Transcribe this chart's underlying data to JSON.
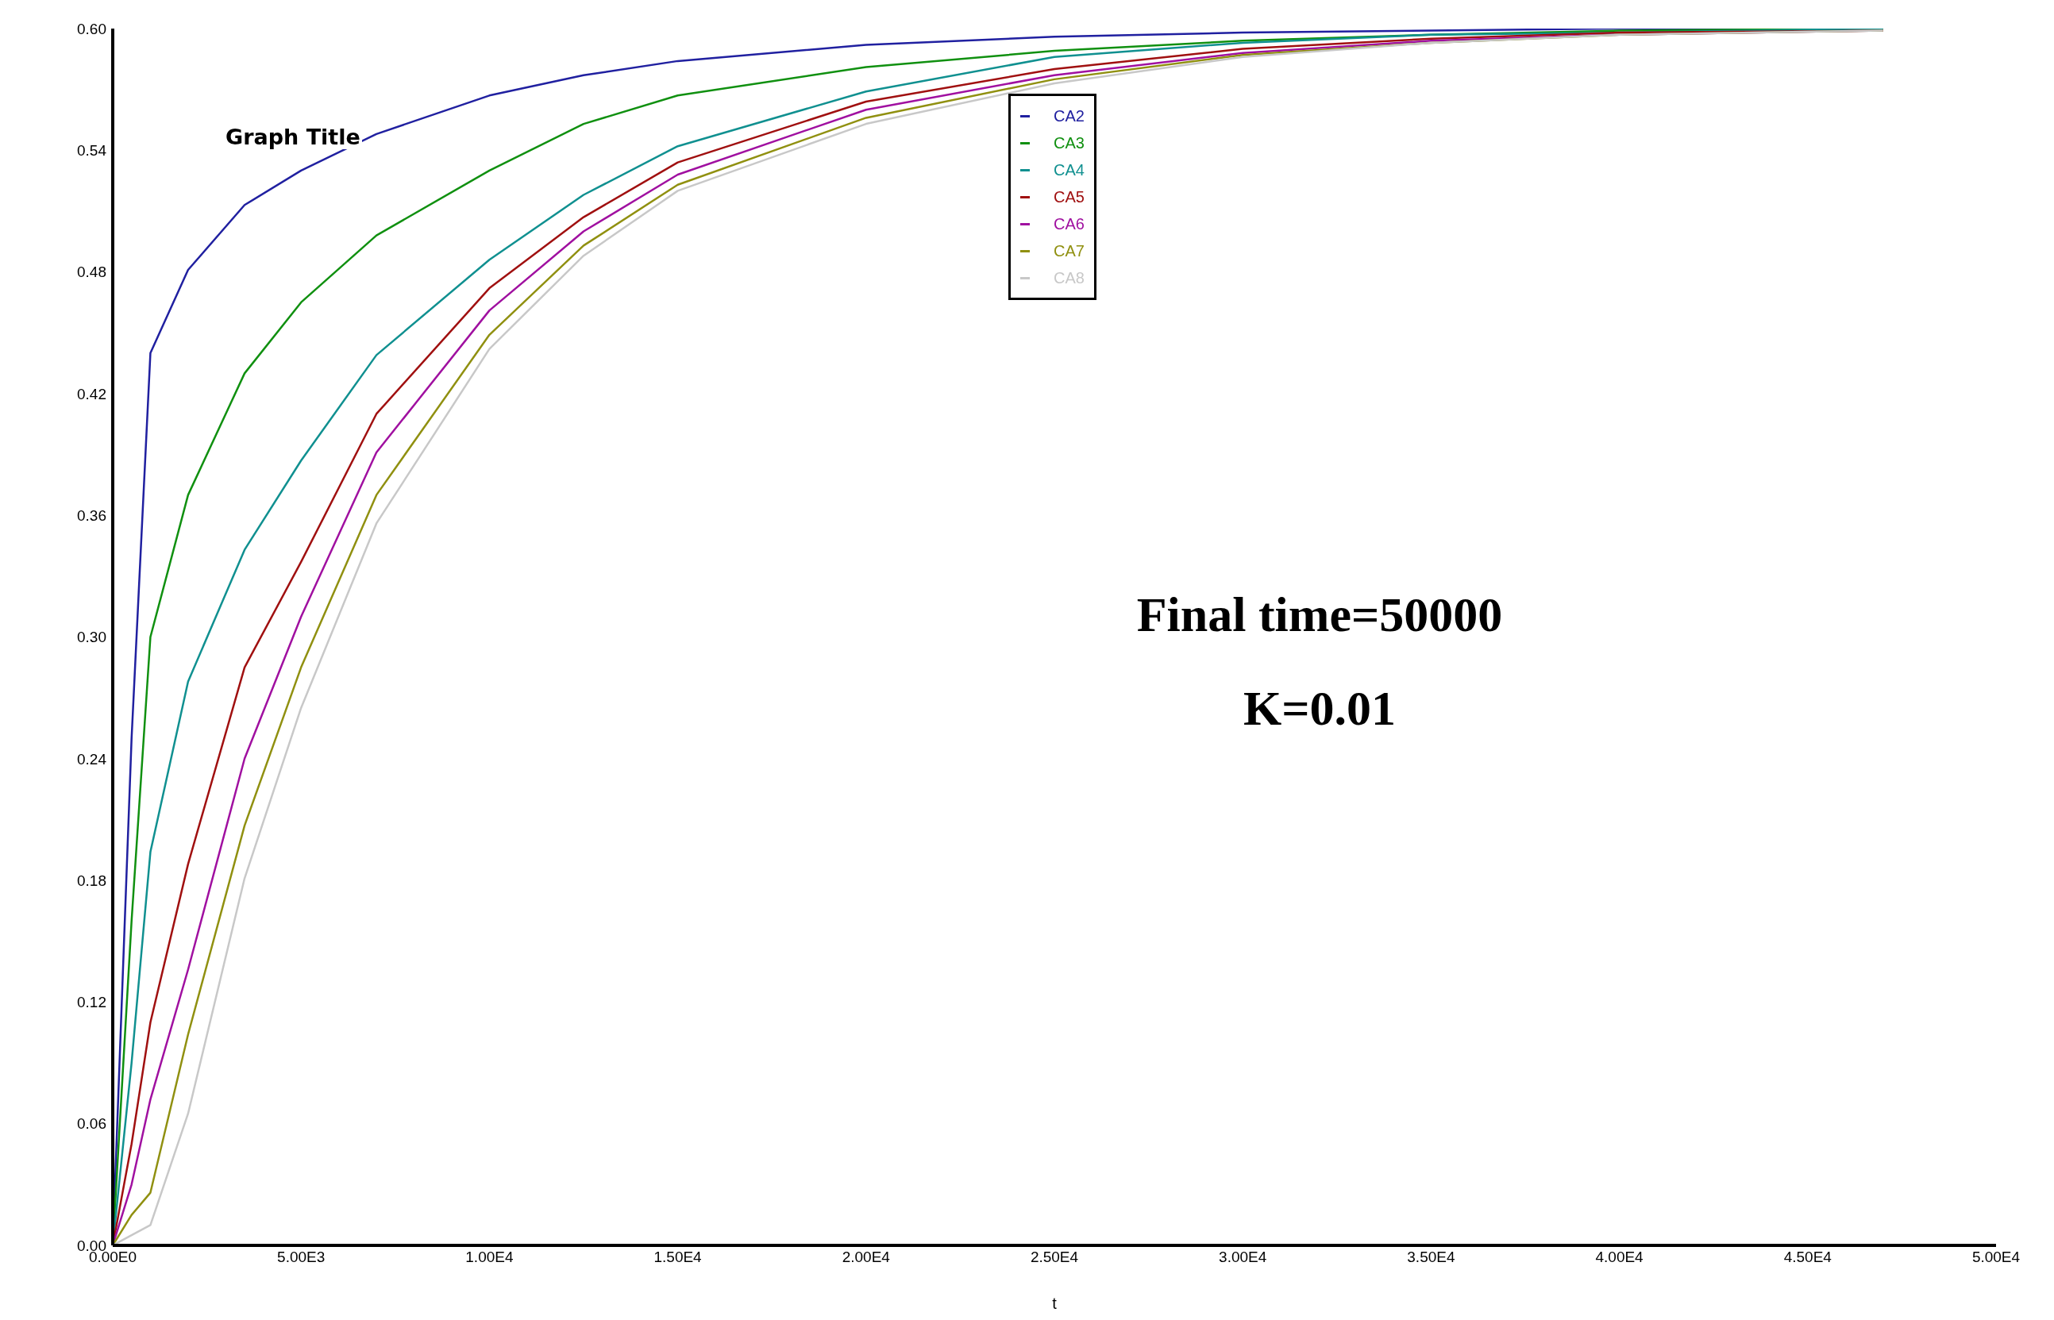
{
  "chart_data": {
    "type": "line",
    "xlabel": "t",
    "x": [
      0,
      500,
      1000,
      2000,
      3500,
      5000,
      7000,
      10000,
      12500,
      15000,
      20000,
      25000,
      30000,
      35000,
      40000,
      47000
    ],
    "series": [
      {
        "name": "CA2",
        "color": "#2020a0",
        "values": [
          0,
          0.25,
          0.44,
          0.481,
          0.513,
          0.53,
          0.548,
          0.567,
          0.577,
          0.584,
          0.592,
          0.596,
          0.598,
          0.599,
          0.6,
          0.6
        ]
      },
      {
        "name": "CA3",
        "color": "#109010",
        "values": [
          0,
          0.16,
          0.3,
          0.37,
          0.43,
          0.465,
          0.498,
          0.53,
          0.553,
          0.567,
          0.581,
          0.589,
          0.594,
          0.597,
          0.599,
          0.6
        ]
      },
      {
        "name": "CA4",
        "color": "#109090",
        "values": [
          0,
          0.09,
          0.194,
          0.278,
          0.343,
          0.387,
          0.439,
          0.486,
          0.518,
          0.542,
          0.569,
          0.586,
          0.593,
          0.597,
          0.598,
          0.6
        ]
      },
      {
        "name": "CA5",
        "color": "#a01010",
        "values": [
          0,
          0.05,
          0.11,
          0.188,
          0.285,
          0.337,
          0.41,
          0.472,
          0.507,
          0.534,
          0.564,
          0.58,
          0.59,
          0.595,
          0.598,
          0.599
        ]
      },
      {
        "name": "CA6",
        "color": "#a010a0",
        "values": [
          0,
          0.03,
          0.072,
          0.136,
          0.24,
          0.31,
          0.391,
          0.461,
          0.5,
          0.528,
          0.56,
          0.577,
          0.588,
          0.594,
          0.597,
          0.599
        ]
      },
      {
        "name": "CA7",
        "color": "#909010",
        "values": [
          0,
          0.015,
          0.026,
          0.104,
          0.207,
          0.285,
          0.37,
          0.449,
          0.493,
          0.523,
          0.556,
          0.575,
          0.587,
          0.593,
          0.597,
          0.599
        ]
      },
      {
        "name": "CA8",
        "color": "#c8c8c8",
        "values": [
          0,
          0.005,
          0.01,
          0.065,
          0.181,
          0.265,
          0.356,
          0.442,
          0.488,
          0.52,
          0.553,
          0.573,
          0.586,
          0.593,
          0.597,
          0.599
        ]
      }
    ],
    "xlim": [
      0,
      50000
    ],
    "xticks": [
      {
        "value": 0,
        "label": "0.00E0"
      },
      {
        "value": 5000,
        "label": "5.00E3"
      },
      {
        "value": 10000,
        "label": "1.00E4"
      },
      {
        "value": 15000,
        "label": "1.50E4"
      },
      {
        "value": 20000,
        "label": "2.00E4"
      },
      {
        "value": 25000,
        "label": "2.50E4"
      },
      {
        "value": 30000,
        "label": "3.00E4"
      },
      {
        "value": 35000,
        "label": "3.50E4"
      },
      {
        "value": 40000,
        "label": "4.00E4"
      },
      {
        "value": 45000,
        "label": "4.50E4"
      },
      {
        "value": 50000,
        "label": "5.00E4"
      }
    ],
    "ylim": [
      0,
      0.6
    ],
    "yticks": [
      {
        "value": 0,
        "label": "0.00"
      },
      {
        "value": 0.06,
        "label": "0.06"
      },
      {
        "value": 0.12,
        "label": "0.12"
      },
      {
        "value": 0.18,
        "label": "0.18"
      },
      {
        "value": 0.24,
        "label": "0.24"
      },
      {
        "value": 0.3,
        "label": "0.30"
      },
      {
        "value": 0.36,
        "label": "0.36"
      },
      {
        "value": 0.42,
        "label": "0.42"
      },
      {
        "value": 0.48,
        "label": "0.48"
      },
      {
        "value": 0.54,
        "label": "0.54"
      },
      {
        "value": 0.6,
        "label": "0.60"
      }
    ],
    "annotations": [
      "Graph Title",
      "Final time=50000",
      "K=0.01"
    ],
    "grid": false,
    "legend": "top",
    "marker": "none",
    "line_style": "solid"
  }
}
